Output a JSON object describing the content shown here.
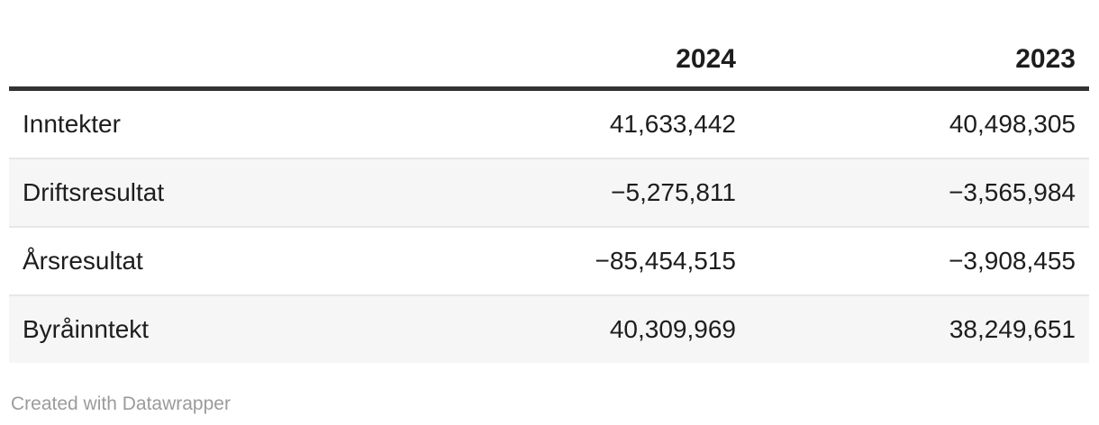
{
  "table": {
    "columns": [
      "",
      "2024",
      "2023"
    ],
    "rows": [
      {
        "label": "Inntekter",
        "values": [
          "41,633,442",
          "40,498,305"
        ]
      },
      {
        "label": "Driftsresultat",
        "values": [
          "−5,275,811",
          "−3,565,984"
        ]
      },
      {
        "label": "Årsresultat",
        "values": [
          "−85,454,515",
          "−3,908,455"
        ]
      },
      {
        "label": "Byråinntekt",
        "values": [
          "40,309,969",
          "38,249,651"
        ]
      }
    ]
  },
  "footer": {
    "attribution": "Created with Datawrapper"
  },
  "colors": {
    "header_border": "#333333",
    "row_divider": "#e7e7e7",
    "row_stripe": "#f6f6f6",
    "text": "#1d1d1d",
    "attribution_text": "#9b9b9b"
  },
  "chart_data": {
    "type": "table",
    "columns": [
      "",
      "2024",
      "2023"
    ],
    "rows": [
      [
        "Inntekter",
        41633442,
        40498305
      ],
      [
        "Driftsresultat",
        -5275811,
        -3565984
      ],
      [
        "Årsresultat",
        -85454515,
        -3908455
      ],
      [
        "Byråinntekt",
        40309969,
        38249651
      ]
    ],
    "title": "",
    "legend_position": "none",
    "grid": "row-stripes"
  }
}
